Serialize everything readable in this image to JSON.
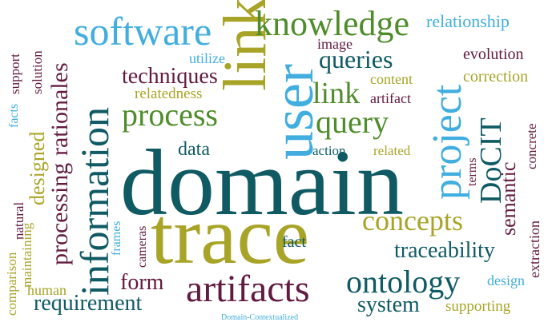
{
  "colors": {
    "teal": "#0f5a63",
    "sky": "#41aedf",
    "olive": "#a8a427",
    "green": "#4f8c2a",
    "maroon": "#621a3f"
  },
  "words": [
    {
      "id": "domain",
      "text": "domain",
      "color": "teal"
    },
    {
      "id": "trace",
      "text": "trace",
      "color": "olive"
    },
    {
      "id": "links",
      "text": "links",
      "color": "olive"
    },
    {
      "id": "user",
      "text": "user",
      "color": "sky"
    },
    {
      "id": "information",
      "text": "information",
      "color": "teal"
    },
    {
      "id": "project",
      "text": "project",
      "color": "sky"
    },
    {
      "id": "software",
      "text": "software",
      "color": "sky"
    },
    {
      "id": "knowledge",
      "text": "knowledge",
      "color": "green"
    },
    {
      "id": "artifacts",
      "text": "artifacts",
      "color": "maroon"
    },
    {
      "id": "ontology",
      "text": "ontology",
      "color": "teal"
    },
    {
      "id": "concepts",
      "text": "concepts",
      "color": "olive"
    },
    {
      "id": "process",
      "text": "process",
      "color": "green"
    },
    {
      "id": "processing",
      "text": "processing",
      "color": "maroon"
    },
    {
      "id": "rationales",
      "text": "rationales",
      "color": "maroon"
    },
    {
      "id": "DoCIT",
      "text": "DoCIT",
      "color": "teal"
    },
    {
      "id": "query",
      "text": "query",
      "color": "green"
    },
    {
      "id": "link",
      "text": "link",
      "color": "green"
    },
    {
      "id": "queries",
      "text": "queries",
      "color": "teal"
    },
    {
      "id": "techniques",
      "text": "techniques",
      "color": "maroon"
    },
    {
      "id": "requirement",
      "text": "requirement",
      "color": "teal"
    },
    {
      "id": "system",
      "text": "system",
      "color": "teal"
    },
    {
      "id": "traceability",
      "text": "traceability",
      "color": "teal"
    },
    {
      "id": "designed",
      "text": "designed",
      "color": "olive"
    },
    {
      "id": "form",
      "text": "form",
      "color": "maroon"
    },
    {
      "id": "semantic",
      "text": "semantic",
      "color": "maroon"
    },
    {
      "id": "data",
      "text": "data",
      "color": "teal"
    },
    {
      "id": "relationship",
      "text": "relationship",
      "color": "sky"
    },
    {
      "id": "evolution",
      "text": "evolution",
      "color": "maroon"
    },
    {
      "id": "correction",
      "text": "correction",
      "color": "olive"
    },
    {
      "id": "content",
      "text": "content",
      "color": "olive"
    },
    {
      "id": "image",
      "text": "image",
      "color": "maroon"
    },
    {
      "id": "artifact",
      "text": "artifact",
      "color": "maroon"
    },
    {
      "id": "utilize",
      "text": "utilize",
      "color": "sky"
    },
    {
      "id": "relatedness",
      "text": "relatedness",
      "color": "olive"
    },
    {
      "id": "action",
      "text": "action",
      "color": "teal"
    },
    {
      "id": "related",
      "text": "related",
      "color": "olive"
    },
    {
      "id": "terms",
      "text": "terms",
      "color": "maroon"
    },
    {
      "id": "concrete",
      "text": "concrete",
      "color": "maroon"
    },
    {
      "id": "extraction",
      "text": "extraction",
      "color": "maroon"
    },
    {
      "id": "fact",
      "text": "fact",
      "color": "teal"
    },
    {
      "id": "design",
      "text": "design",
      "color": "sky"
    },
    {
      "id": "supporting",
      "text": "supporting",
      "color": "olive"
    },
    {
      "id": "human",
      "text": "human",
      "color": "olive"
    },
    {
      "id": "natural",
      "text": "natural",
      "color": "maroon"
    },
    {
      "id": "frames",
      "text": "frames",
      "color": "sky"
    },
    {
      "id": "cameras",
      "text": "cameras",
      "color": "maroon"
    },
    {
      "id": "comparison",
      "text": "comparison",
      "color": "olive"
    },
    {
      "id": "maintaining",
      "text": "maintaining",
      "color": "olive"
    },
    {
      "id": "support",
      "text": "support",
      "color": "maroon"
    },
    {
      "id": "solution",
      "text": "solution",
      "color": "maroon"
    },
    {
      "id": "facts",
      "text": "facts",
      "color": "sky"
    },
    {
      "id": "domain_contextualized",
      "text": "Domain-Contextualized",
      "color": "sky"
    }
  ]
}
